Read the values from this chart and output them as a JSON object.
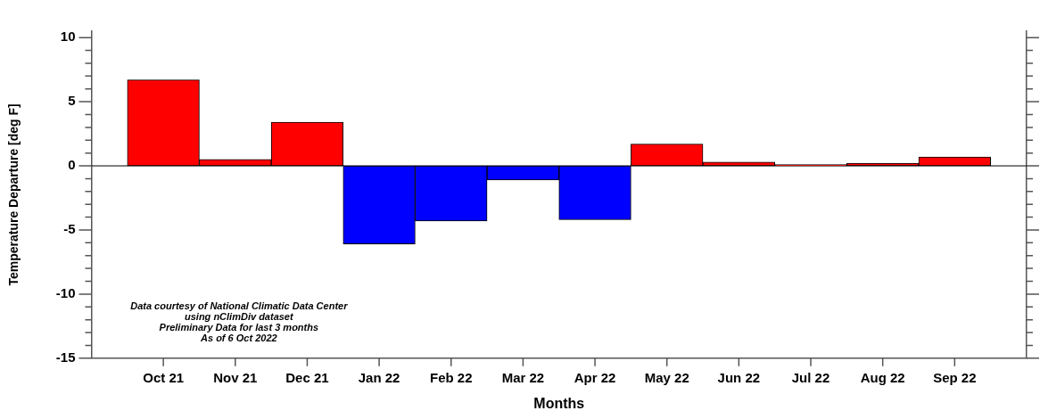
{
  "chart_data": {
    "type": "bar",
    "xlabel": "Months",
    "ylabel": "Temperature Departure [deg F]",
    "categories": [
      "Oct 21",
      "Nov 21",
      "Dec 21",
      "Jan 22",
      "Feb 22",
      "Mar 22",
      "Apr 22",
      "May 22",
      "Jun 22",
      "Jul 22",
      "Aug 22",
      "Sep 22"
    ],
    "values": [
      6.7,
      0.5,
      3.4,
      -6.1,
      -4.3,
      -1.1,
      -4.2,
      1.7,
      0.3,
      0.1,
      0.2,
      0.7
    ],
    "colors": [
      "#ff0000",
      "#ff0000",
      "#ff0000",
      "#0000ff",
      "#0000ff",
      "#0000ff",
      "#0000ff",
      "#ff0000",
      "#ff0000",
      "#ff0000",
      "#ff0000",
      "#ff0000"
    ],
    "ylim": [
      -15,
      10.5
    ],
    "yticks": [
      -15,
      {
        "value": -14,
        "label": null
      },
      {
        "value": -13,
        "label": null
      },
      {
        "value": -12,
        "label": null
      },
      {
        "value": -11,
        "label": null
      },
      -10,
      {
        "value": -9,
        "label": null
      },
      {
        "value": -8,
        "label": null
      },
      {
        "value": -7,
        "label": null
      },
      {
        "value": -6,
        "label": null
      },
      -5,
      {
        "value": -4,
        "label": null
      },
      {
        "value": -3,
        "label": null
      },
      {
        "value": -2,
        "label": null
      },
      {
        "value": -1,
        "label": null
      },
      0,
      {
        "value": 1,
        "label": null
      },
      {
        "value": 2,
        "label": null
      },
      {
        "value": 3,
        "label": null
      },
      {
        "value": 4,
        "label": null
      },
      5,
      {
        "value": 6,
        "label": null
      },
      {
        "value": 7,
        "label": null
      },
      {
        "value": 8,
        "label": null
      },
      {
        "value": 9,
        "label": null
      },
      10
    ],
    "ref_lines": [
      {
        "axis": "y",
        "value": 0,
        "color": "#000000"
      }
    ],
    "annotations": [
      "Data courtesy of National Climatic Data Center",
      "using nClimDiv dataset",
      "Preliminary Data for last 3 months",
      "As of 6 Oct 2022"
    ]
  }
}
